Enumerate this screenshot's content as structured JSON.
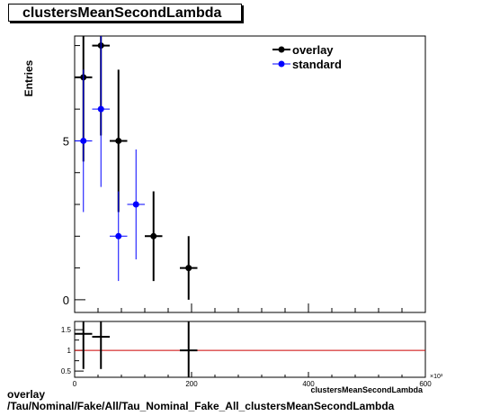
{
  "chart_data": [
    {
      "type": "scatter",
      "title": "clustersMeanSecondLambda",
      "ylabel": "Entries",
      "xlabel": "clustersMeanSecondLambda",
      "x_multiplier": "×10³",
      "xlim": [
        0,
        600
      ],
      "ylim": [
        -0.4,
        8.3
      ],
      "yticks": [
        0,
        5
      ],
      "legend_position": "top-right",
      "series": [
        {
          "name": "overlay",
          "color": "#000000",
          "points": [
            {
              "x": 15,
              "xerr": 15,
              "y": 7,
              "ylo": 4.35,
              "yhi": 9.65
            },
            {
              "x": 45,
              "xerr": 15,
              "y": 8,
              "ylo": 5.17,
              "yhi": 10.83
            },
            {
              "x": 75,
              "xerr": 15,
              "y": 5,
              "ylo": 2.76,
              "yhi": 7.24
            },
            {
              "x": 135,
              "xerr": 15,
              "y": 2,
              "ylo": 0.59,
              "yhi": 3.41
            },
            {
              "x": 195,
              "xerr": 15,
              "y": 1,
              "ylo": 0,
              "yhi": 2
            }
          ]
        },
        {
          "name": "standard",
          "color": "#0000ff",
          "points": [
            {
              "x": 15,
              "xerr": 15,
              "y": 5,
              "ylo": 2.76,
              "yhi": 7.24
            },
            {
              "x": 45,
              "xerr": 15,
              "y": 6,
              "ylo": 3.55,
              "yhi": 8.45
            },
            {
              "x": 75,
              "xerr": 15,
              "y": 2,
              "ylo": 0.59,
              "yhi": 3.41
            },
            {
              "x": 105,
              "xerr": 15,
              "y": 3,
              "ylo": 1.27,
              "yhi": 4.73
            }
          ]
        }
      ]
    },
    {
      "type": "scatter",
      "xlim": [
        0,
        600
      ],
      "ylim": [
        0.35,
        1.7
      ],
      "yticks": [
        0.5,
        1,
        1.5
      ],
      "xticks": [
        0,
        200,
        400,
        600
      ],
      "reference_line": {
        "y": 1,
        "color": "#cc0000"
      },
      "points": [
        {
          "x": 15,
          "xerr": 15,
          "y": 1.4,
          "ylo": 0.55,
          "yhi": 1.7
        },
        {
          "x": 45,
          "xerr": 15,
          "y": 1.33,
          "ylo": 0.55,
          "yhi": 1.7
        },
        {
          "x": 195,
          "xerr": 15,
          "y": 1.0,
          "ylo": 0.35,
          "yhi": 1.7
        }
      ]
    }
  ],
  "footer": {
    "line1": "overlay",
    "line2": "/Tau/Nominal/Fake/All/Tau_Nominal_Fake_All_clustersMeanSecondLambda"
  }
}
